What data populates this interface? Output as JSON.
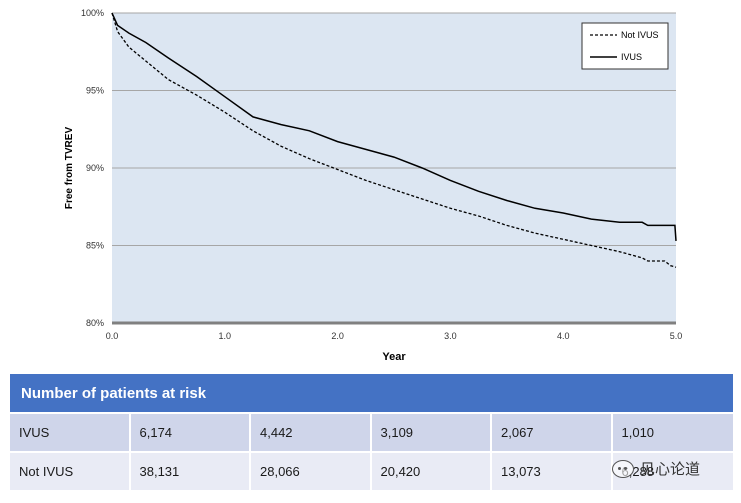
{
  "chart_data": {
    "type": "line",
    "title": "",
    "xlabel": "Year",
    "ylabel": "Free from TVREV",
    "xlim": [
      0,
      5
    ],
    "ylim": [
      80,
      100
    ],
    "x_ticks": [
      "0.0",
      "1.0",
      "2.0",
      "3.0",
      "4.0",
      "5.0"
    ],
    "y_ticks": [
      "80%",
      "85%",
      "90%",
      "95%",
      "100%"
    ],
    "grid": "horizontal",
    "legend_position": "top-right",
    "series": [
      {
        "name": "Not IVUS",
        "style": "dashed",
        "x": [
          0,
          0.05,
          0.15,
          0.3,
          0.5,
          0.75,
          1.0,
          1.25,
          1.5,
          1.75,
          2.0,
          2.25,
          2.5,
          2.75,
          3.0,
          3.25,
          3.5,
          3.75,
          4.0,
          4.25,
          4.5,
          4.7,
          4.75,
          4.9,
          4.95,
          5.0
        ],
        "y": [
          100,
          98.8,
          97.8,
          96.9,
          95.7,
          94.7,
          93.6,
          92.4,
          91.4,
          90.6,
          89.9,
          89.2,
          88.6,
          88.0,
          87.4,
          86.9,
          86.3,
          85.8,
          85.4,
          85.0,
          84.6,
          84.2,
          84.0,
          84.0,
          83.7,
          83.6
        ]
      },
      {
        "name": "IVUS",
        "style": "solid",
        "x": [
          0,
          0.05,
          0.15,
          0.3,
          0.5,
          0.75,
          1.0,
          1.25,
          1.5,
          1.75,
          2.0,
          2.25,
          2.5,
          2.75,
          3.0,
          3.25,
          3.5,
          3.75,
          4.0,
          4.25,
          4.5,
          4.7,
          4.75,
          4.99,
          5.0
        ],
        "y": [
          100,
          99.2,
          98.7,
          98.1,
          97.1,
          95.9,
          94.6,
          93.3,
          92.8,
          92.4,
          91.7,
          91.2,
          90.7,
          90.0,
          89.2,
          88.5,
          87.9,
          87.4,
          87.1,
          86.7,
          86.5,
          86.5,
          86.3,
          86.3,
          85.3
        ]
      }
    ]
  },
  "risk_table": {
    "title": "Number of patients at risk",
    "rows": [
      {
        "label": "IVUS",
        "values": [
          "6,174",
          "4,442",
          "3,109",
          "2,067",
          "1,010"
        ]
      },
      {
        "label": "Not IVUS",
        "values": [
          "38,131",
          "28,066",
          "20,420",
          "13,073",
          "6,288"
        ]
      }
    ]
  },
  "watermark": {
    "text": "见心论道",
    "icon": "wechat-icon"
  }
}
